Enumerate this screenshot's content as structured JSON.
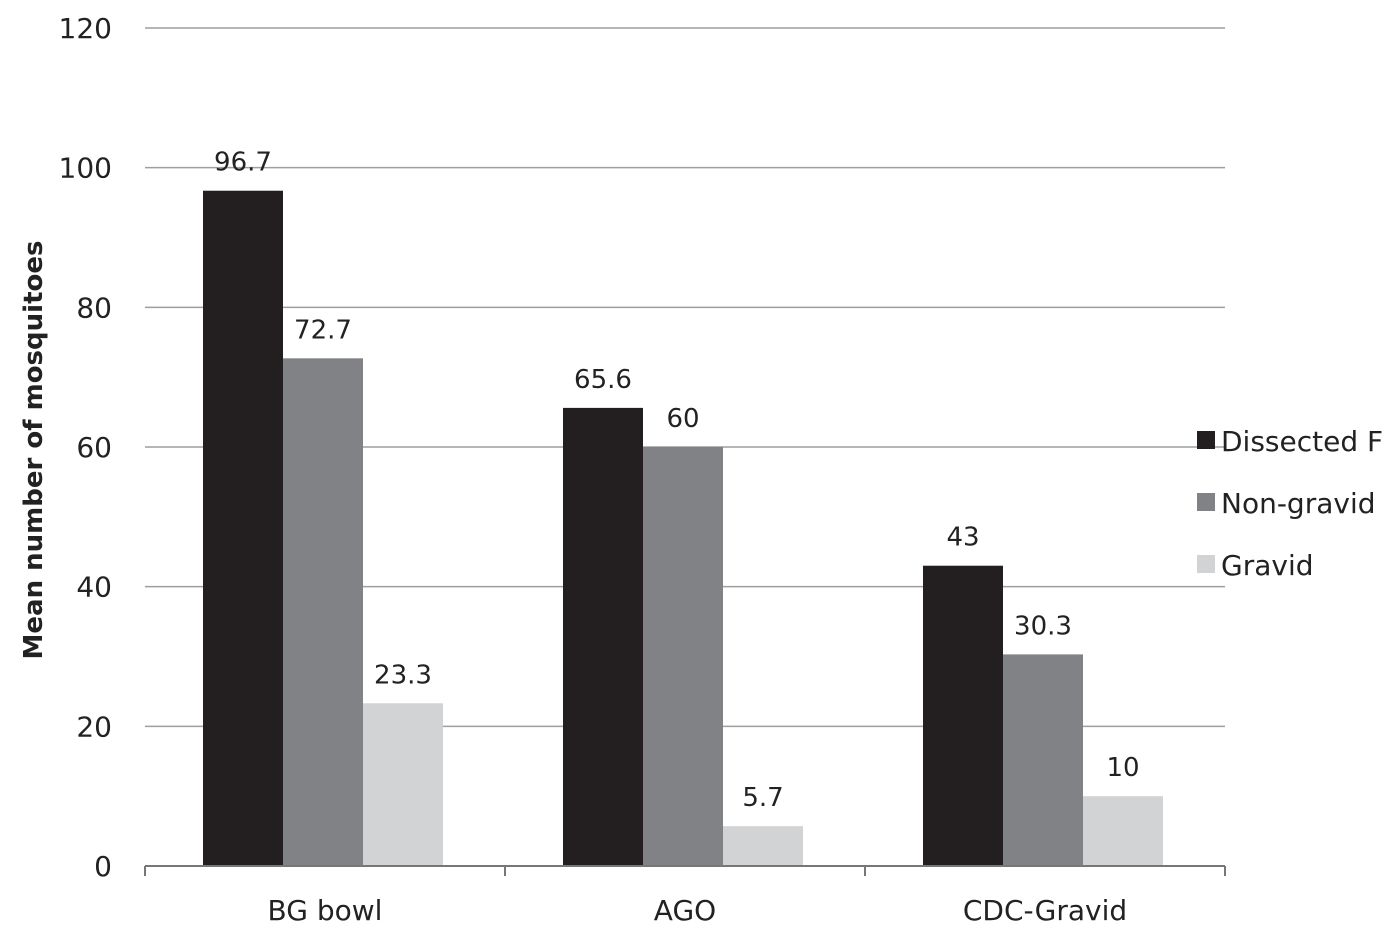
{
  "chart_data": {
    "type": "bar",
    "title": "",
    "xlabel": "",
    "ylabel": "Mean number of mosquitoes",
    "categories": [
      "BG bowl",
      "AGO",
      "CDC-Gravid"
    ],
    "series": [
      {
        "name": "Dissected F",
        "values": [
          96.7,
          65.6,
          43
        ],
        "labels": [
          "96.7",
          "65.6",
          "43"
        ],
        "color": "#231f20"
      },
      {
        "name": "Non-gravid",
        "values": [
          72.7,
          60,
          30.3
        ],
        "labels": [
          "72.7",
          "60",
          "30.3"
        ],
        "color": "#808285"
      },
      {
        "name": "Gravid",
        "values": [
          23.3,
          5.7,
          10
        ],
        "labels": [
          "23.3",
          "5.7",
          "10"
        ],
        "color": "#d1d3d4"
      }
    ],
    "ylim": [
      0,
      120
    ],
    "yticks": [
      0,
      20,
      40,
      60,
      80,
      100,
      120
    ],
    "grid": true,
    "legend_position": "right"
  }
}
